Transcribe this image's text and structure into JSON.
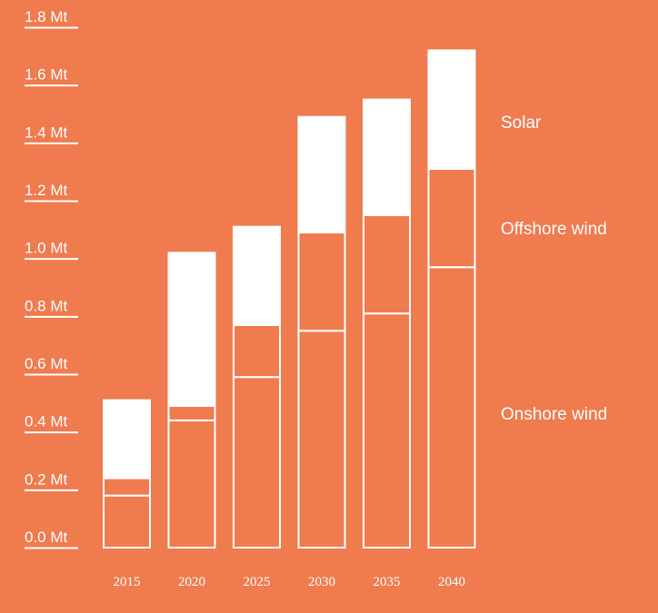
{
  "colors": {
    "background": "#EF7B4F",
    "solar_fill": "#FFFFFF",
    "wind_fill": "#EF7B4F",
    "stroke": "#FFFFFF"
  },
  "chart_data": {
    "type": "bar",
    "stacked": true,
    "unit": "Mt",
    "categories": [
      "2015",
      "2020",
      "2025",
      "2030",
      "2035",
      "2040"
    ],
    "series": [
      {
        "name": "Onshore wind",
        "values": [
          0.18,
          0.44,
          0.59,
          0.75,
          0.81,
          0.97
        ]
      },
      {
        "name": "Offshore wind",
        "values": [
          0.06,
          0.05,
          0.18,
          0.34,
          0.34,
          0.34
        ]
      },
      {
        "name": "Solar",
        "values": [
          0.27,
          0.53,
          0.34,
          0.4,
          0.4,
          0.41
        ]
      }
    ],
    "yticks": [
      "0.0 Mt",
      "0.2 Mt",
      "0.4 Mt",
      "0.6 Mt",
      "0.8 Mt",
      "1.0 Mt",
      "1.2 Mt",
      "1.4 Mt",
      "1.6 Mt",
      "1.8 Mt"
    ],
    "ytick_values": [
      0,
      0.2,
      0.4,
      0.6,
      0.8,
      1.0,
      1.2,
      1.4,
      1.6,
      1.8
    ],
    "ylim": [
      0,
      1.8
    ],
    "legend": "right, labels aligned with series segments",
    "grid": false
  }
}
